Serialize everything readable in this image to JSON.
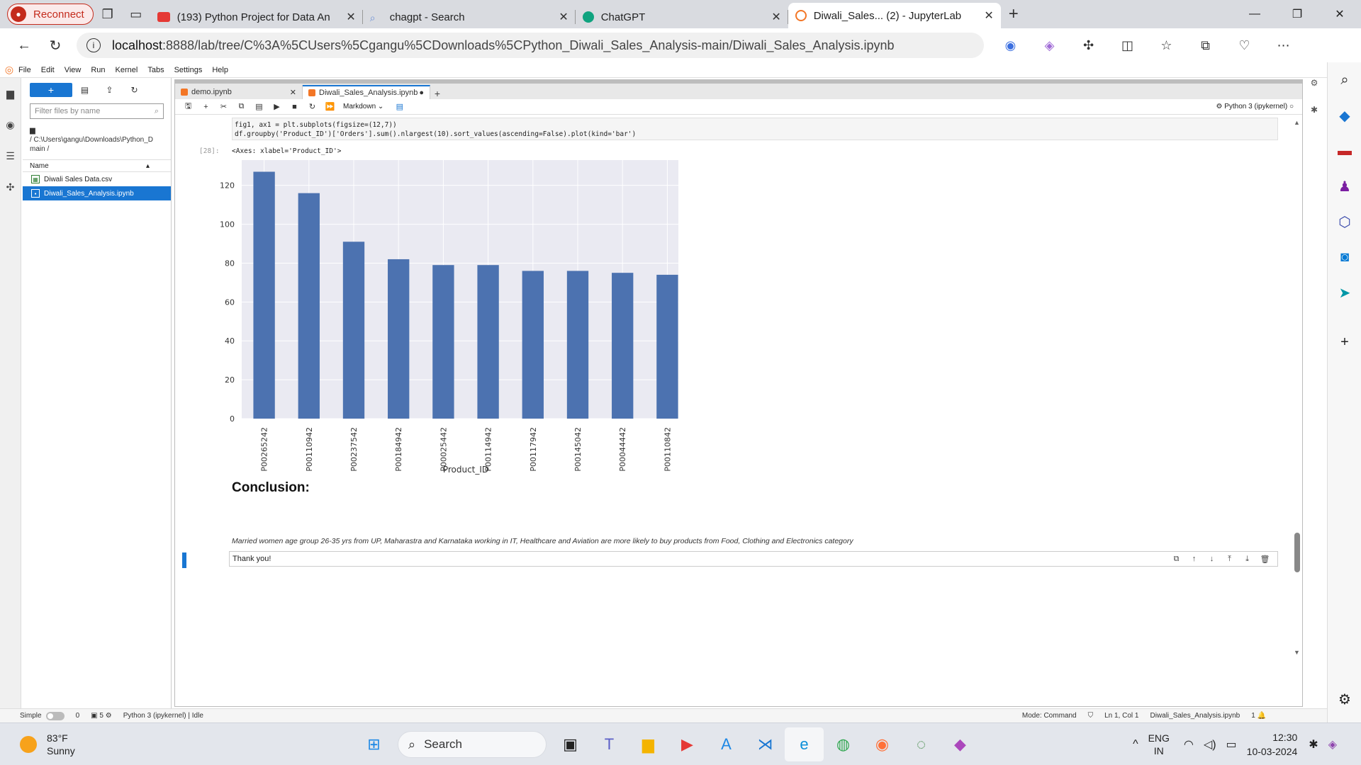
{
  "browser": {
    "reconnect_label": "Reconnect",
    "tabs": [
      {
        "label": "(193) Python Project for Data An",
        "icon_color": "#e53935"
      },
      {
        "label": "chagpt - Search",
        "icon_color": "#6b8fd6"
      },
      {
        "label": "ChatGPT",
        "icon_color": "#10a37f"
      },
      {
        "label": "Diwali_Sales... (2) - JupyterLab",
        "icon_color": "#f37626"
      }
    ],
    "url_host": "localhost",
    "url_path": ":8888/lab/tree/C%3A%5CUsers%5Cgangu%5CDownloads%5CPython_Diwali_Sales_Analysis-main/Diwali_Sales_Analysis.ipynb"
  },
  "jupyter": {
    "menu": [
      "File",
      "Edit",
      "View",
      "Run",
      "Kernel",
      "Tabs",
      "Settings",
      "Help"
    ],
    "filter_placeholder": "Filter files by name",
    "path": "/ C:\\Users\\gangu\\Downloads\\Python_D main /",
    "name_header": "Name",
    "files": [
      {
        "name": "Diwali Sales Data.csv",
        "selected": false
      },
      {
        "name": "Diwali_Sales_Analysis.ipynb",
        "selected": true
      }
    ],
    "doc_tabs": [
      "demo.ipynb",
      "Diwali_Sales_Analysis.ipynb"
    ],
    "cell_type": "Markdown",
    "kernel": "Python 3 (ipykernel)",
    "code_line1": "fig1, ax1 = plt.subplots(figsize=(12,7))",
    "code_line2": "df.groupby('Product_ID')['Orders'].sum().nlargest(10).sort_values(ascending=False).plot(kind='bar')",
    "out_prompt": "[28]:",
    "out_text": "<Axes: xlabel='Product_ID'>",
    "conclusion_heading": "Conclusion:",
    "conclusion_text": "Married women age group 26-35 yrs from UP, Maharastra and Karnataka working in IT, Healthcare and Aviation are more likely to buy products from Food, Clothing and Electronics category",
    "thank_you": "Thank you!",
    "status": {
      "mode_label": "Simple",
      "count_a": "0",
      "count_b": "5",
      "kernel_status": "Python 3 (ipykernel) | Idle",
      "mode": "Mode: Command",
      "cursor": "Ln 1, Col 1",
      "file": "Diwali_Sales_Analysis.ipynb",
      "notif": "1"
    }
  },
  "chart_data": {
    "type": "bar",
    "categories": [
      "P00265242",
      "P00110942",
      "P00237542",
      "P00184942",
      "P00025442",
      "P00114942",
      "P00117942",
      "P00145042",
      "P00044442",
      "P00110842"
    ],
    "values": [
      127,
      116,
      91,
      82,
      79,
      79,
      76,
      76,
      75,
      74
    ],
    "xlabel": "Product_ID",
    "ylabel": "",
    "ylim": [
      0,
      133
    ],
    "yticks": [
      0,
      20,
      40,
      60,
      80,
      100,
      120
    ],
    "bar_color": "#4c72b0",
    "bg_color": "#eaeaf2",
    "grid": true
  },
  "taskbar": {
    "temp": "83°F",
    "weather": "Sunny",
    "search": "Search",
    "lang1": "ENG",
    "lang2": "IN",
    "time": "12:30",
    "date": "10-03-2024"
  }
}
